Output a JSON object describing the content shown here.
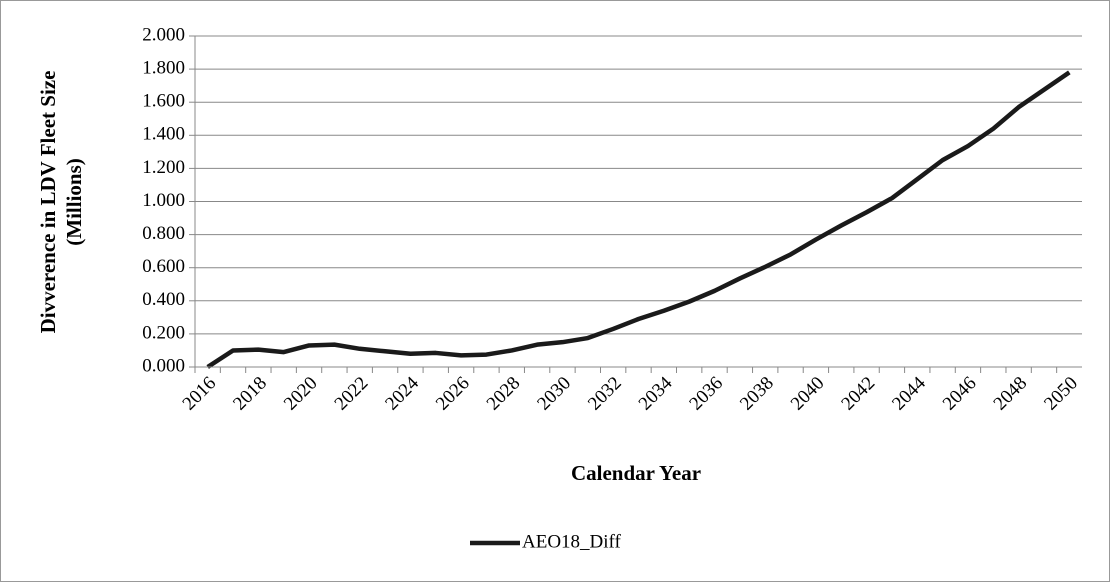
{
  "chart_data": {
    "type": "line",
    "ylabel": [
      "Divverence in LDV Fleet Size",
      "(Millions)"
    ],
    "xlabel": "Calendar Year",
    "categories": [
      "2016",
      null,
      "2018",
      null,
      "2020",
      null,
      "2022",
      null,
      "2024",
      null,
      "2026",
      null,
      "2028",
      null,
      "2030",
      null,
      "2032",
      null,
      "2034",
      null,
      "2036",
      null,
      "2038",
      null,
      "2040",
      null,
      "2042",
      null,
      "2044",
      null,
      "2046",
      null,
      "2048",
      null,
      "2050"
    ],
    "series": [
      {
        "name": "AEO18_Diff",
        "color": "#1a1a1a",
        "values": [
          0,
          0.1,
          0.105,
          0.09,
          0.13,
          0.135,
          0.11,
          0.095,
          0.08,
          0.085,
          0.07,
          0.075,
          0.1,
          0.135,
          0.15,
          0.175,
          0.23,
          0.29,
          0.34,
          0.395,
          0.46,
          0.535,
          0.605,
          0.68,
          0.77,
          0.855,
          0.935,
          1.02,
          1.135,
          1.25,
          1.335,
          1.44,
          1.57,
          1.675,
          1.78
        ]
      }
    ],
    "ylim": [
      0,
      2
    ],
    "yticks": [
      {
        "value": 0,
        "label": "0.000"
      },
      {
        "value": 0.2,
        "label": "0.200"
      },
      {
        "value": 0.4,
        "label": "0.400"
      },
      {
        "value": 0.6,
        "label": "0.600"
      },
      {
        "value": 0.8,
        "label": "0.800"
      },
      {
        "value": 1,
        "label": "1.000"
      },
      {
        "value": 1.2,
        "label": "1.200"
      },
      {
        "value": 1.4,
        "label": "1.400"
      },
      {
        "value": 1.6,
        "label": "1.600"
      },
      {
        "value": 1.8,
        "label": "1.800"
      },
      {
        "value": 2,
        "label": "2.000"
      }
    ],
    "grid": true,
    "legend": "bottom"
  }
}
